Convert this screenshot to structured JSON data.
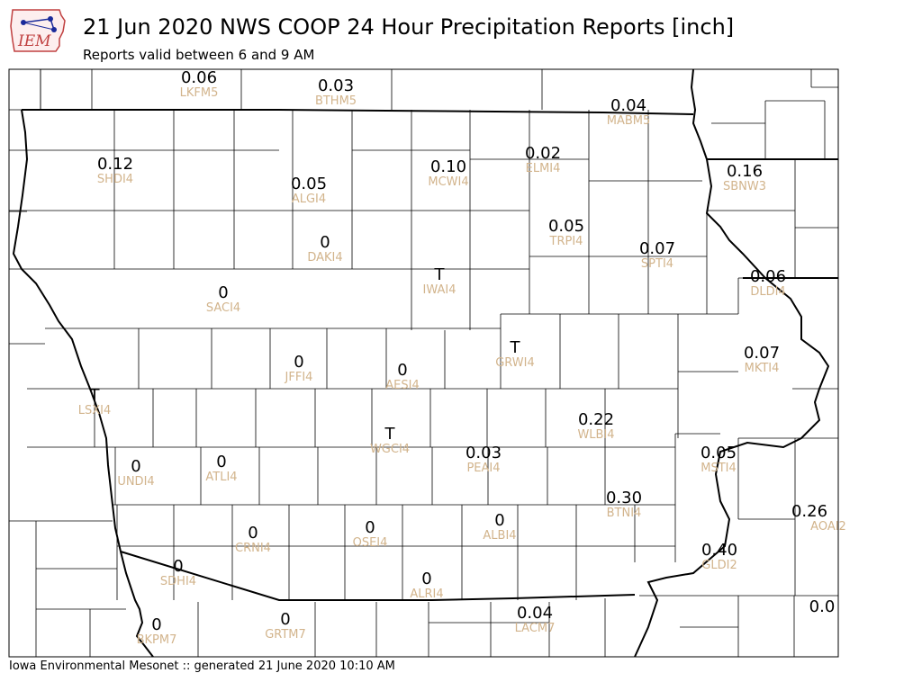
{
  "header": {
    "logo_text": "IEM",
    "title": "21 Jun 2020 NWS COOP 24 Hour Precipitation Reports [inch]",
    "subtitle": "Reports valid between 6 and 9 AM"
  },
  "footer": {
    "credit": "Iowa Environmental Mesonet :: generated 21 June 2020 10:10 AM"
  },
  "colors": {
    "value_text": "#000000",
    "station_id_text": "#d2b48c",
    "county_lines": "#000000",
    "background": "#ffffff"
  },
  "stations": [
    {
      "id": "LKFM5",
      "value": "0.06"
    },
    {
      "id": "BTHM5",
      "value": "0.03"
    },
    {
      "id": "MABM5",
      "value": "0.04"
    },
    {
      "id": "SHDI4",
      "value": "0.12"
    },
    {
      "id": "ALGI4",
      "value": "0.05"
    },
    {
      "id": "MCWI4",
      "value": "0.10"
    },
    {
      "id": "ELMI4",
      "value": "0.02"
    },
    {
      "id": "SBNW3",
      "value": "0.16"
    },
    {
      "id": "TRPI4",
      "value": "0.05"
    },
    {
      "id": "SPTI4",
      "value": "0.07"
    },
    {
      "id": "DAKI4",
      "value": "0"
    },
    {
      "id": "IWAI4",
      "value": "T"
    },
    {
      "id": "DLDI4",
      "value": "0.06"
    },
    {
      "id": "SACI4",
      "value": "0"
    },
    {
      "id": "GRWI4",
      "value": "T"
    },
    {
      "id": "JFFI4",
      "value": "0"
    },
    {
      "id": "AESI4",
      "value": "0"
    },
    {
      "id": "MKTI4",
      "value": "0.07"
    },
    {
      "id": "LSXI4",
      "value": "T"
    },
    {
      "id": "WLBI4",
      "value": "0.22"
    },
    {
      "id": "WGCI4",
      "value": "T"
    },
    {
      "id": "PEAI4",
      "value": "0.03"
    },
    {
      "id": "MSTI4",
      "value": "0.05"
    },
    {
      "id": "UNDI4",
      "value": "0"
    },
    {
      "id": "ATLI4",
      "value": "0"
    },
    {
      "id": "BTNI4",
      "value": "0.30"
    },
    {
      "id": "AOAI2",
      "value": "0.26"
    },
    {
      "id": "CRNI4",
      "value": "0"
    },
    {
      "id": "OSEI4",
      "value": "0"
    },
    {
      "id": "ALBI4",
      "value": "0"
    },
    {
      "id": "GLDI2",
      "value": "0.40"
    },
    {
      "id": "SDHI4",
      "value": "0"
    },
    {
      "id": "ALRI4",
      "value": "0"
    },
    {
      "id": "BKPM7",
      "value": "0"
    },
    {
      "id": "GRTM7",
      "value": "0"
    },
    {
      "id": "LACM7",
      "value": "0.04"
    },
    {
      "id": "",
      "value": "0.0"
    }
  ]
}
